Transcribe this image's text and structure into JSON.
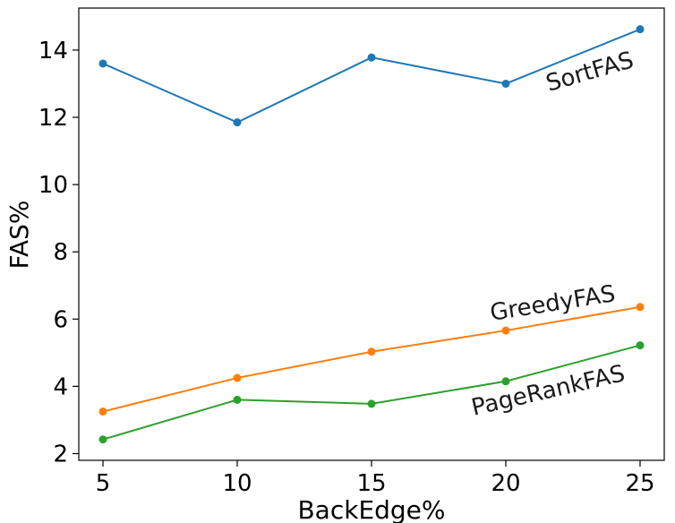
{
  "chart_data": {
    "type": "line",
    "title": "",
    "xlabel": "BackEdge%",
    "ylabel": "FAS%",
    "x": [
      5,
      10,
      15,
      20,
      25
    ],
    "xticks": [
      5,
      10,
      15,
      20,
      25
    ],
    "yticks": [
      2,
      4,
      6,
      8,
      10,
      12,
      14
    ],
    "xlim": [
      4.1,
      25.9
    ],
    "ylim": [
      1.8,
      15.25
    ],
    "grid": false,
    "legend": "none",
    "series": [
      {
        "name": "SortFAS",
        "color": "#1f77b4",
        "values": [
          13.6,
          11.85,
          13.78,
          13.0,
          14.62
        ]
      },
      {
        "name": "GreedyFAS",
        "color": "#ff7f0e",
        "values": [
          3.25,
          4.25,
          5.03,
          5.66,
          6.36
        ]
      },
      {
        "name": "PageRankFAS",
        "color": "#2ca02c",
        "values": [
          2.42,
          3.6,
          3.48,
          4.15,
          5.22
        ]
      }
    ]
  }
}
